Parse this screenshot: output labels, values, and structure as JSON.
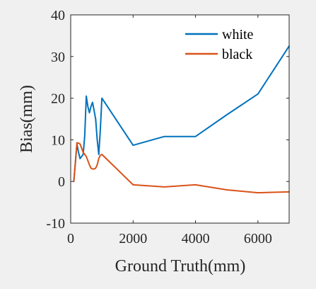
{
  "chart_data": {
    "type": "line",
    "xlabel": "Ground Truth(mm)",
    "ylabel": "Bias(mm)",
    "xlim": [
      0,
      7000
    ],
    "ylim": [
      -10,
      40
    ],
    "xticks": [
      0,
      2000,
      4000,
      6000
    ],
    "yticks": [
      -10,
      0,
      10,
      20,
      30,
      40
    ],
    "grid": false,
    "legend_position": "top-right",
    "series": [
      {
        "name": "white",
        "color": "#0072BD",
        "x": [
          100,
          200,
          250,
          300,
          350,
          400,
          450,
          500,
          550,
          600,
          650,
          700,
          750,
          800,
          850,
          900,
          950,
          1000,
          2000,
          3000,
          4000,
          5000,
          6000,
          7000
        ],
        "y": [
          0,
          9,
          7,
          5.5,
          6,
          6.5,
          11,
          20.5,
          18,
          16.5,
          18,
          19,
          17,
          15,
          10,
          6.5,
          12.5,
          20,
          8.7,
          10.8,
          10.8,
          16,
          21,
          32.5
        ]
      },
      {
        "name": "black",
        "color": "#D95319",
        "x": [
          100,
          200,
          250,
          300,
          350,
          400,
          450,
          500,
          550,
          600,
          650,
          700,
          750,
          800,
          850,
          900,
          950,
          1000,
          2000,
          3000,
          4000,
          5000,
          6000,
          7000
        ],
        "y": [
          0,
          9.3,
          9.2,
          9,
          8,
          7,
          6.5,
          6,
          5,
          4,
          3.2,
          3,
          3,
          3.2,
          4,
          5.5,
          6.3,
          6.5,
          -0.8,
          -1.3,
          -0.8,
          -2,
          -2.7,
          -2.5
        ]
      }
    ]
  }
}
